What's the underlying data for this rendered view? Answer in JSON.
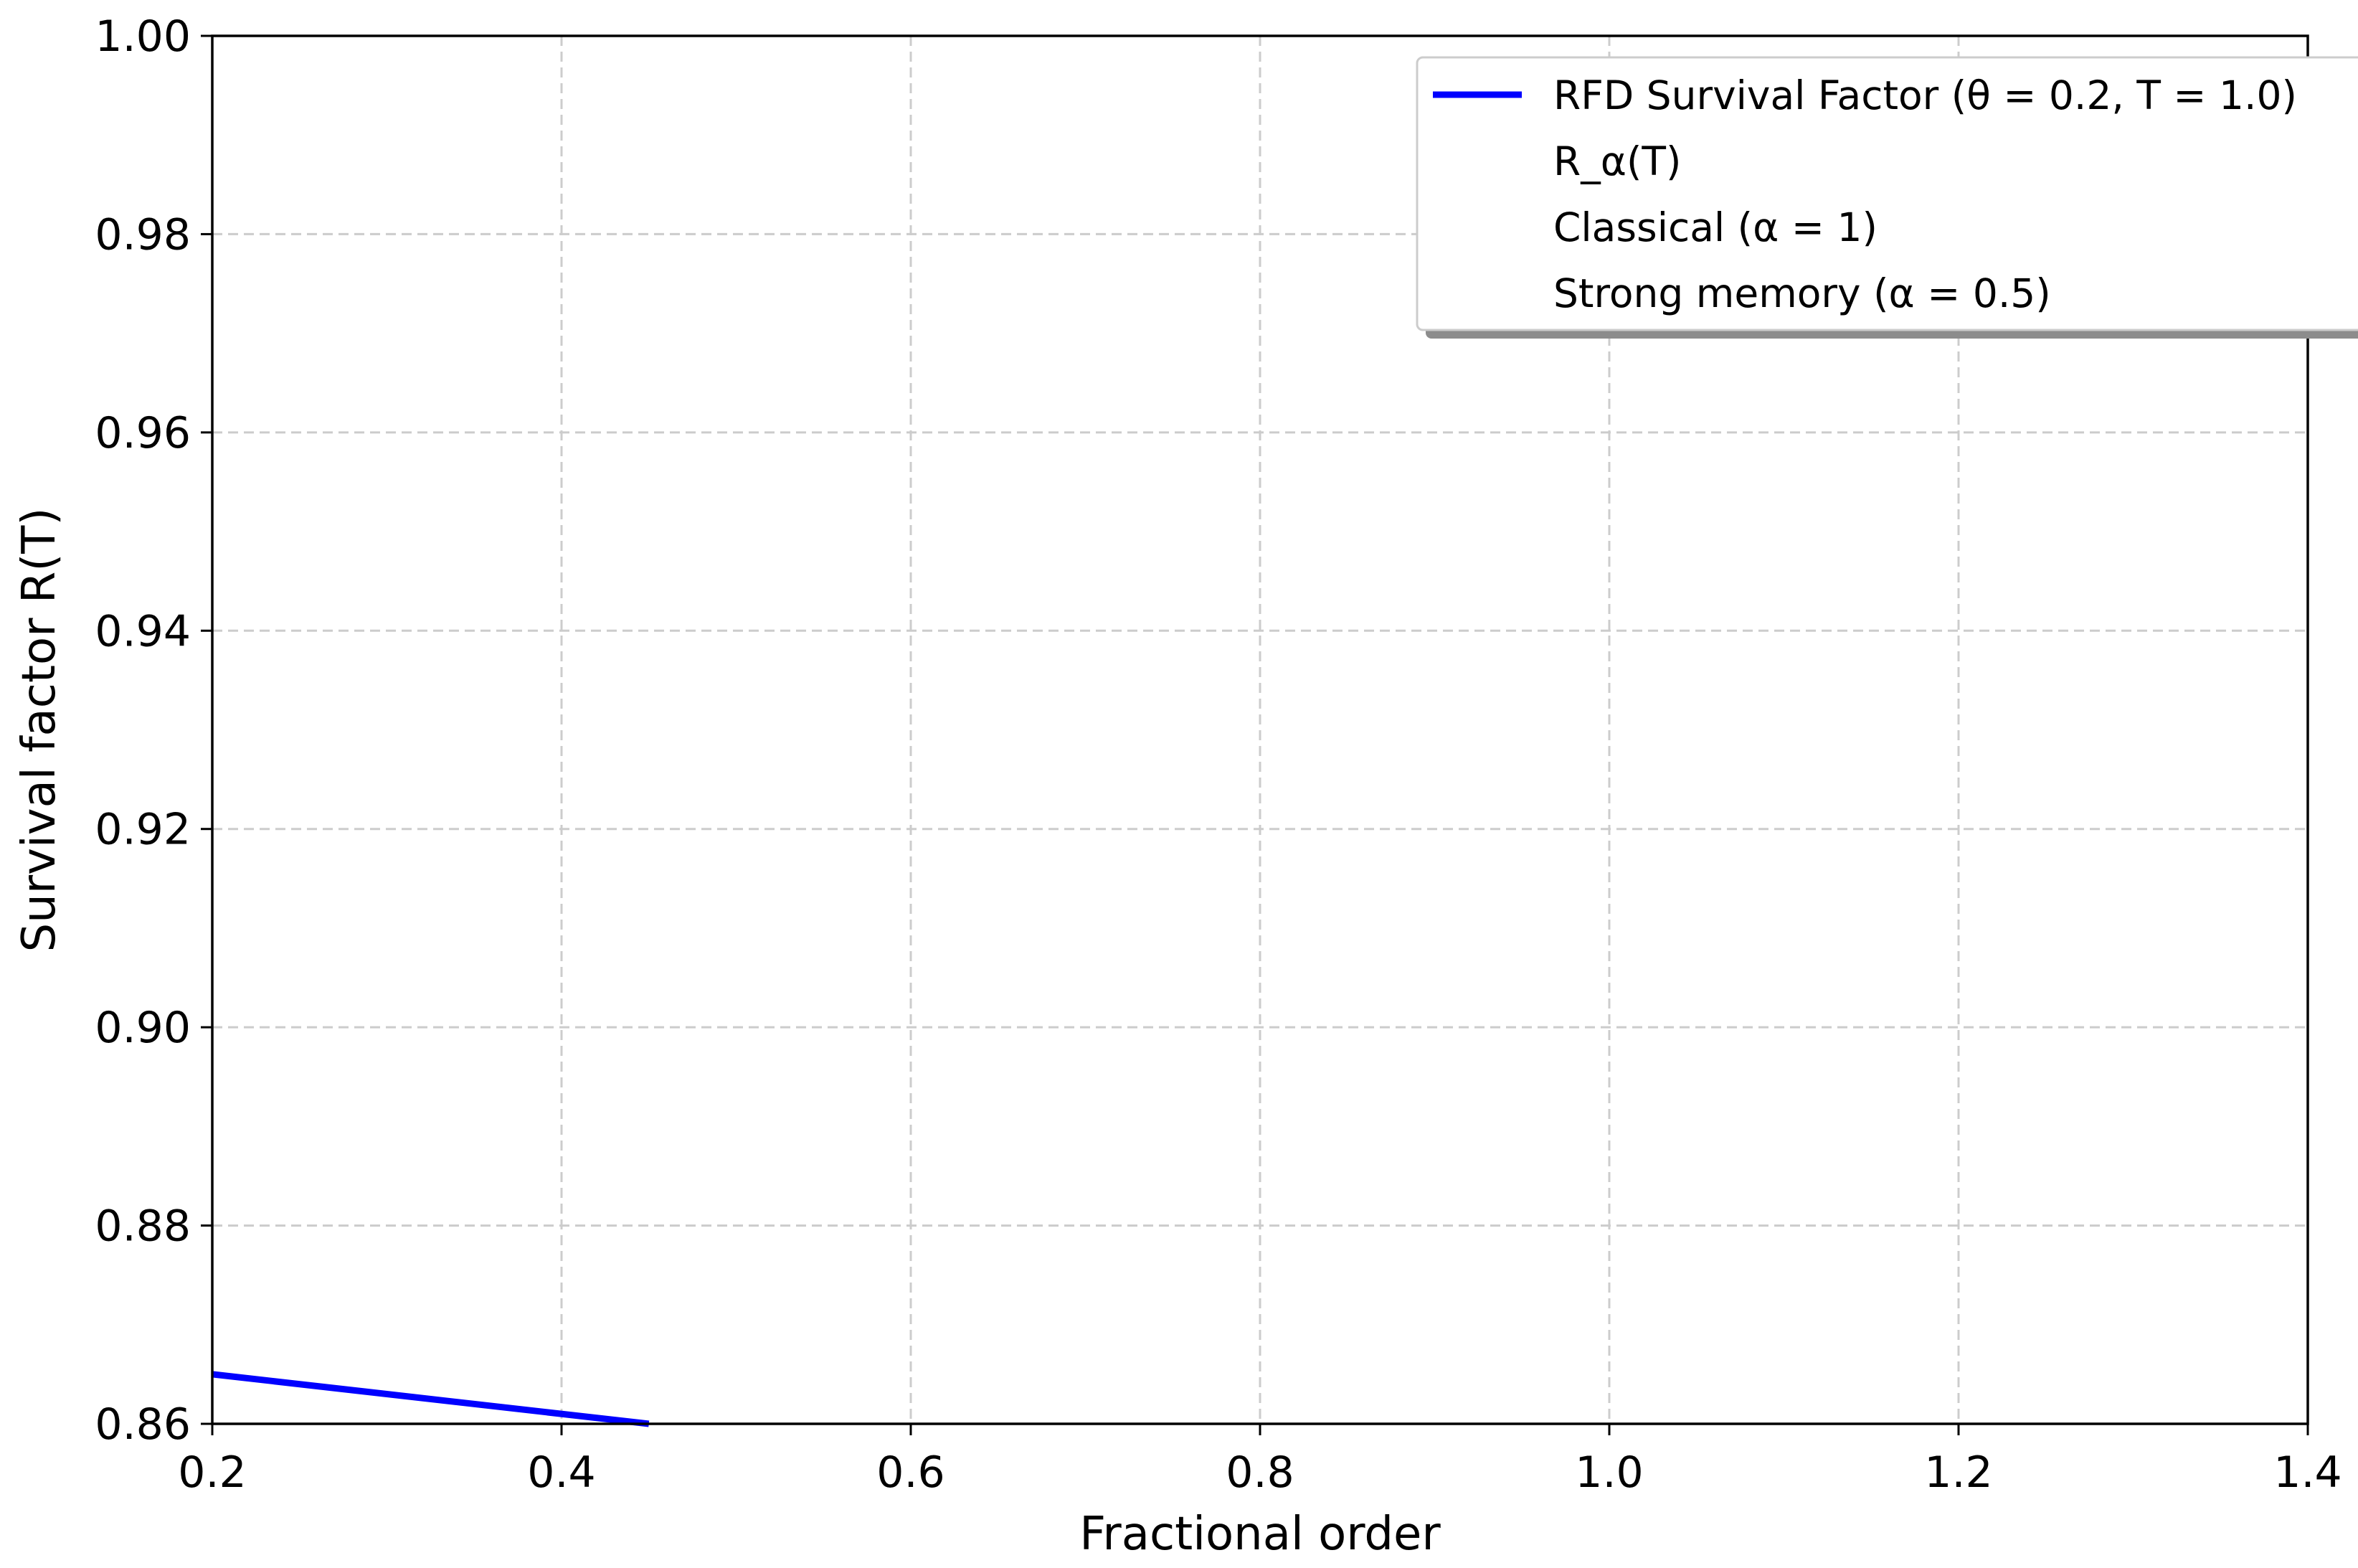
{
  "chart_data": {
    "type": "line",
    "title": "",
    "xlabel": "Fractional order",
    "ylabel": "Survival factor R(T)",
    "xlim": [
      0.2,
      1.4
    ],
    "ylim": [
      0.86,
      1.0
    ],
    "xticks": [
      0.2,
      0.4,
      0.6,
      0.8,
      1.0,
      1.2,
      1.4
    ],
    "yticks": [
      0.86,
      0.88,
      0.9,
      0.92,
      0.94,
      0.96,
      0.98,
      1.0
    ],
    "xtick_labels": [
      "0.2",
      "0.4",
      "0.6",
      "0.8",
      "1.0",
      "1.2",
      "1.4"
    ],
    "ytick_labels": [
      "0.86",
      "0.88",
      "0.90",
      "0.92",
      "0.94",
      "0.96",
      "0.98",
      "1.00"
    ],
    "grid": true,
    "legend_position": "top-right",
    "series": [
      {
        "name": "RFD Survival Factor (θ = 0.2, T = 1.0)",
        "color": "#0000ff",
        "x": [
          0.2,
          0.45
        ],
        "y": [
          0.865,
          0.86
        ]
      }
    ],
    "legend_entries": [
      {
        "label": "RFD Survival Factor (θ = 0.2, T = 1.0)",
        "has_line": true,
        "color": "#0000ff"
      },
      {
        "label": "R_α(T)",
        "has_line": false
      },
      {
        "label": "Classical (α = 1)",
        "has_line": false
      },
      {
        "label": "Strong memory (α = 0.5)",
        "has_line": false
      }
    ]
  }
}
